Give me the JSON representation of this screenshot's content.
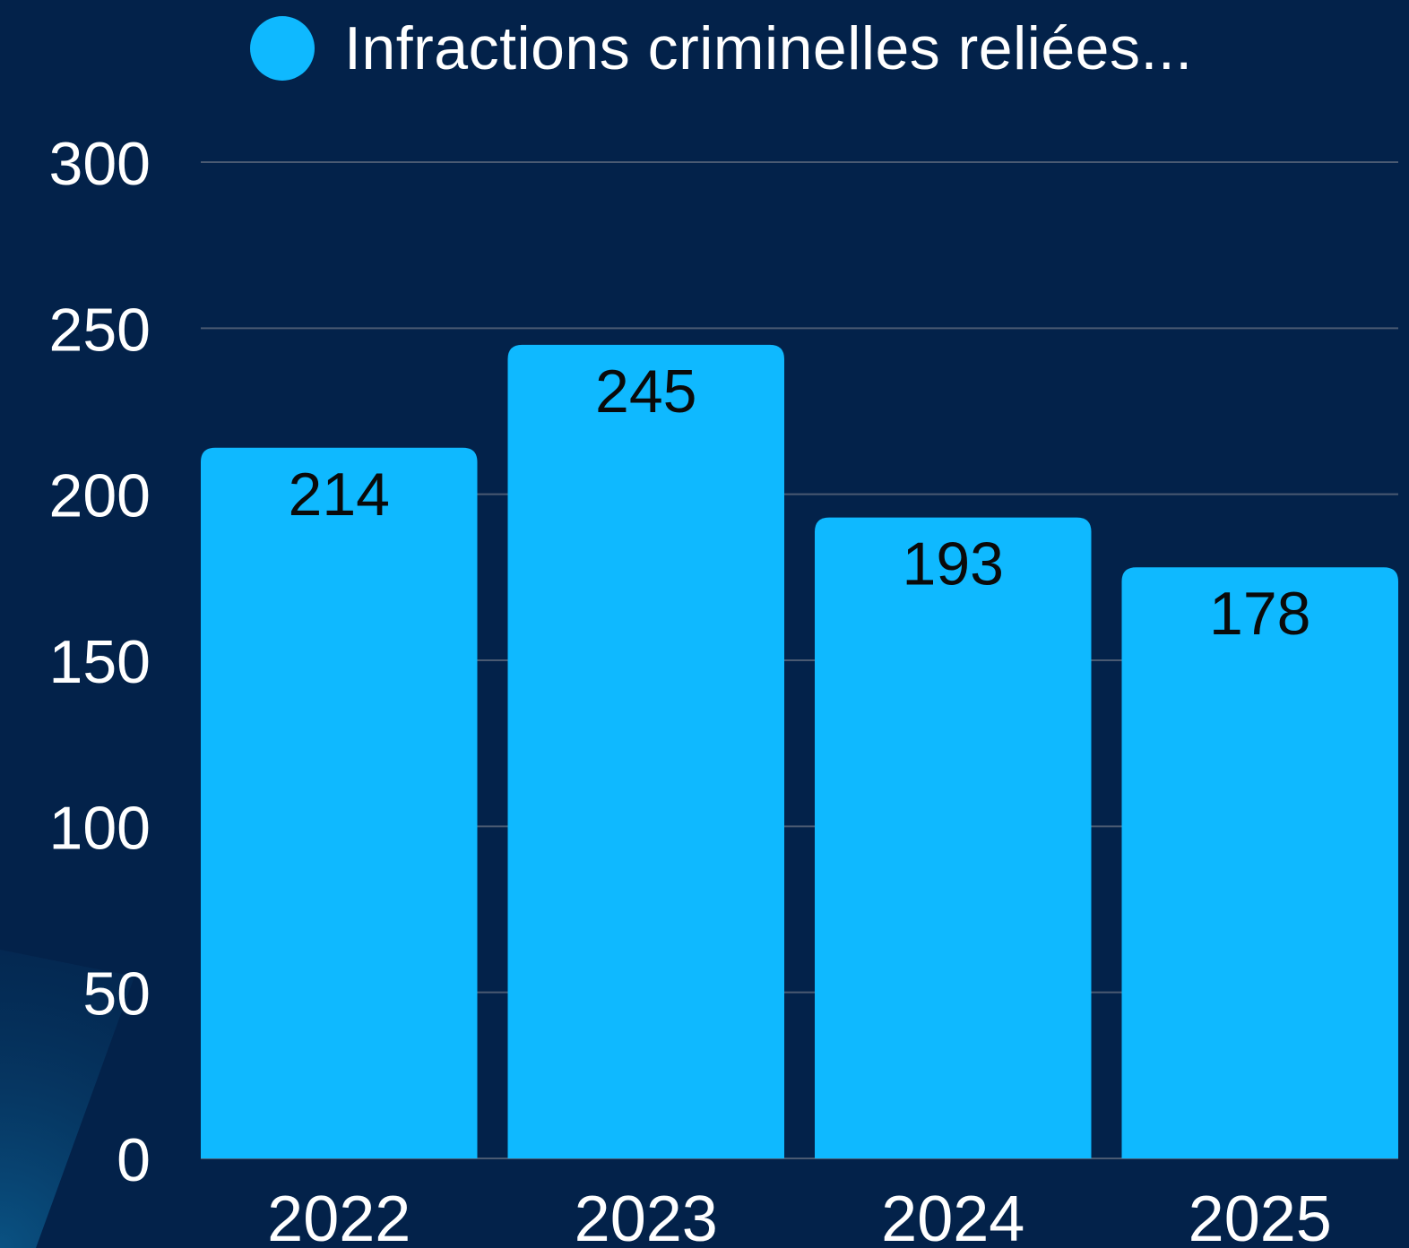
{
  "chart_data": {
    "type": "bar",
    "categories": [
      "2022",
      "2023",
      "2024",
      "2025"
    ],
    "series": [
      {
        "name": "Infractions criminelles reliées...",
        "values": [
          214,
          245,
          193,
          178
        ],
        "color": "#0fb9ff"
      }
    ],
    "data_labels": [
      "214",
      "245",
      "193",
      "178"
    ],
    "yticks": [
      "0",
      "50",
      "100",
      "150",
      "200",
      "250",
      "300"
    ],
    "ylim": [
      0,
      300
    ],
    "grid": true,
    "legend_position": "top",
    "colors": {
      "background": "#03224a",
      "bar": "#0fb9ff",
      "gridline": "#4a5a72",
      "axis_text": "#ffffff",
      "data_label_text": "#0a0a0a"
    }
  }
}
